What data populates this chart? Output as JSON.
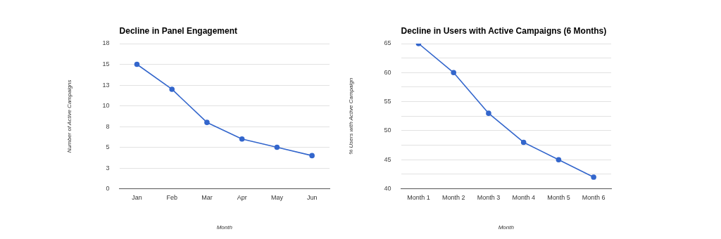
{
  "chart_data": [
    {
      "type": "line",
      "title": "Decline in Panel Engagement",
      "xlabel": "Month",
      "ylabel": "Number of Active Campaigns",
      "categories": [
        "Jan",
        "Feb",
        "Mar",
        "Apr",
        "May",
        "Jun"
      ],
      "series": [
        {
          "color": "#3366cc",
          "values": [
            15,
            12,
            8,
            6,
            5,
            4
          ]
        }
      ],
      "ylim": [
        0,
        17.5
      ],
      "yticks": [
        0,
        {
          "value": 2.5,
          "label": "3"
        },
        5,
        {
          "value": 7.5,
          "label": "8"
        },
        10,
        {
          "value": 12.5,
          "label": "13"
        },
        15,
        {
          "value": 17.5,
          "label": "18"
        }
      ],
      "grid": "y",
      "legend": false,
      "marker": "circle",
      "line_style": "solid"
    },
    {
      "type": "line",
      "title": "Decline in Users with Active Campaigns (6 Months)",
      "xlabel": "Month",
      "ylabel": "% Users with Active Campaign",
      "categories": [
        "Month 1",
        "Month 2",
        "Month 3",
        "Month 4",
        "Month 5",
        "Month 6"
      ],
      "series": [
        {
          "color": "#3366cc",
          "values": [
            65,
            60,
            53,
            48,
            45,
            42
          ]
        }
      ],
      "ylim": [
        40,
        65
      ],
      "yticks": [
        40,
        {
          "value": 42.5,
          "label": null
        },
        45,
        {
          "value": 47.5,
          "label": null
        },
        50,
        {
          "value": 52.5,
          "label": null
        },
        55,
        {
          "value": 57.5,
          "label": null
        },
        60,
        {
          "value": 62.5,
          "label": null
        },
        65
      ],
      "grid": "y",
      "legend": false,
      "marker": "circle",
      "line_style": "solid"
    }
  ]
}
